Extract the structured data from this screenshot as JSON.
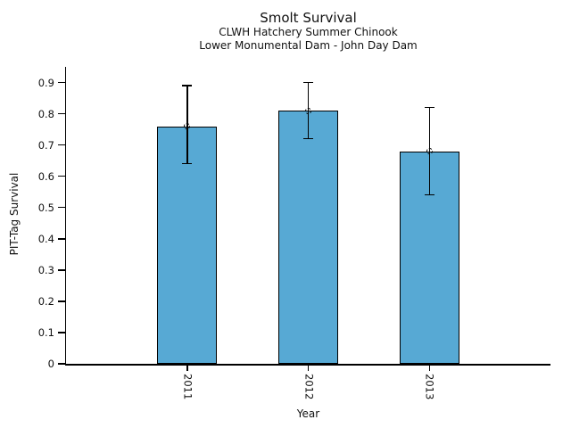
{
  "chart_data": {
    "type": "bar",
    "title": "Smolt Survival",
    "subtitles": [
      "CLWH Hatchery Summer Chinook",
      "Lower Monumental Dam - John Day Dam"
    ],
    "xlabel": "Year",
    "ylabel": "PIT-Tag Survival",
    "categories": [
      "2011",
      "2012",
      "2013"
    ],
    "values": [
      0.76,
      0.81,
      0.68
    ],
    "error_low": [
      0.64,
      0.72,
      0.54
    ],
    "error_high": [
      0.89,
      0.9,
      0.82
    ],
    "ylim": [
      0,
      0.95
    ],
    "ytick_labels": [
      "0",
      "0.1",
      "0.2",
      "0.3",
      "0.4",
      "0.5",
      "0.6",
      "0.7",
      "0.8",
      "0.9"
    ],
    "grid": false,
    "legend_position": "none",
    "marker": "open-circle",
    "colors": {
      "bar_fill": "#57a9d4",
      "bar_edge": "#000000",
      "error_bar": "#000000",
      "axis": "#000000",
      "text": "#111111",
      "background": "#ffffff"
    }
  }
}
